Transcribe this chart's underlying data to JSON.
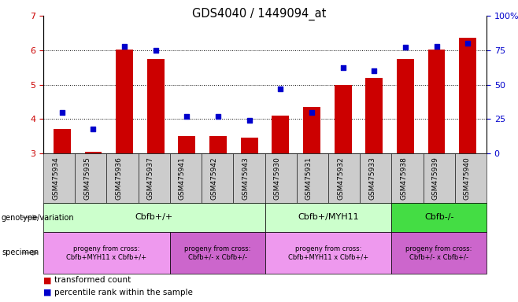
{
  "title": "GDS4040 / 1449094_at",
  "samples": [
    "GSM475934",
    "GSM475935",
    "GSM475936",
    "GSM475937",
    "GSM475941",
    "GSM475942",
    "GSM475943",
    "GSM475930",
    "GSM475931",
    "GSM475932",
    "GSM475933",
    "GSM475938",
    "GSM475939",
    "GSM475940"
  ],
  "bar_values": [
    3.7,
    3.05,
    6.02,
    5.75,
    3.5,
    3.5,
    3.45,
    4.1,
    4.35,
    5.0,
    5.2,
    5.75,
    6.02,
    6.35
  ],
  "dot_percentiles": [
    30,
    18,
    78,
    75,
    27,
    27,
    24,
    47,
    30,
    62,
    60,
    77,
    78,
    80
  ],
  "ylim_left": [
    3,
    7
  ],
  "bar_color": "#cc0000",
  "dot_color": "#0000cc",
  "bar_bottom": 3.0,
  "geno_groups": [
    {
      "label": "Cbfb+/+",
      "start": 0,
      "end": 6,
      "color": "#ccffcc"
    },
    {
      "label": "Cbfb+/MYH11",
      "start": 7,
      "end": 10,
      "color": "#ccffcc"
    },
    {
      "label": "Cbfb-/-",
      "start": 11,
      "end": 13,
      "color": "#44dd44"
    }
  ],
  "spec_groups": [
    {
      "label": "progeny from cross:\nCbfb+MYH11 x Cbfb+/+",
      "start": 0,
      "end": 3,
      "color": "#ee99ee"
    },
    {
      "label": "progeny from cross:\nCbfb+/- x Cbfb+/-",
      "start": 4,
      "end": 6,
      "color": "#cc66cc"
    },
    {
      "label": "progeny from cross:\nCbfb+MYH11 x Cbfb+/+",
      "start": 7,
      "end": 10,
      "color": "#ee99ee"
    },
    {
      "label": "progeny from cross:\nCbfb+/- x Cbfb+/-",
      "start": 11,
      "end": 13,
      "color": "#cc66cc"
    }
  ],
  "label_left": [
    "genotype/variation",
    "specimen"
  ],
  "legend_items": [
    {
      "color": "#cc0000",
      "label": "transformed count"
    },
    {
      "color": "#0000cc",
      "label": "percentile rank within the sample"
    }
  ]
}
